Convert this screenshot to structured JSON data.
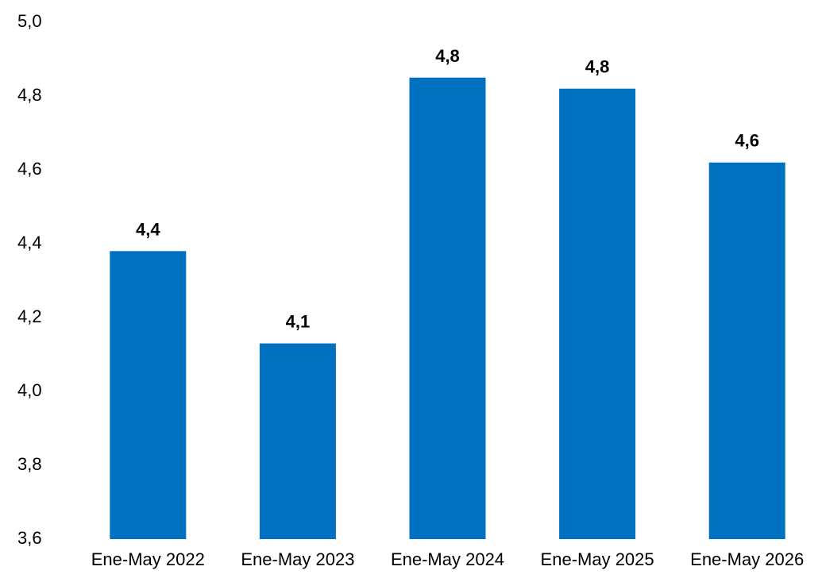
{
  "chart_data": {
    "type": "bar",
    "categories": [
      "Ene-May 2022",
      "Ene-May 2023",
      "Ene-May 2024",
      "Ene-May 2025",
      "Ene-May 2026"
    ],
    "values": [
      4.38,
      4.13,
      4.85,
      4.82,
      4.62
    ],
    "data_labels": [
      "4,4",
      "4,1",
      "4,8",
      "4,8",
      "4,6"
    ],
    "ylim": [
      3.6,
      5.0
    ],
    "y_ticks": [
      5.0,
      4.8,
      4.6,
      4.4,
      4.2,
      4.0,
      3.8,
      3.6
    ],
    "y_tick_labels": [
      "5,0",
      "4,8",
      "4,6",
      "4,4",
      "4,2",
      "4,0",
      "3,8",
      "3,6"
    ],
    "grid": false,
    "bar_color": "#0070C0"
  }
}
